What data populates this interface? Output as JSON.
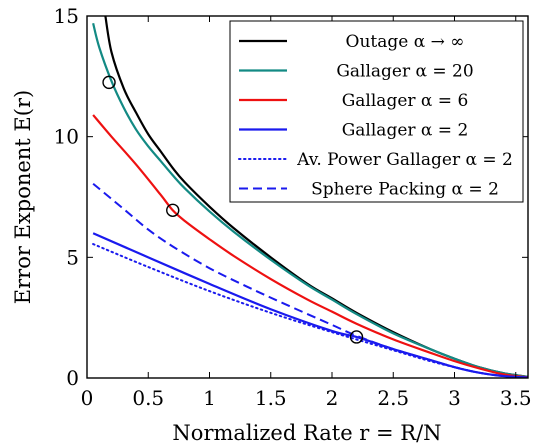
{
  "chart_data": {
    "type": "line",
    "xlabel": "Normalized Rate r = R/N",
    "ylabel": "Error Exponent E(r)",
    "xlim": [
      0,
      3.6
    ],
    "ylim": [
      0,
      15
    ],
    "xticks": [
      0,
      0.5,
      1,
      1.5,
      2,
      2.5,
      3,
      3.5
    ],
    "xtick_labels": [
      "0",
      "0.5",
      "1",
      "1.5",
      "2",
      "2.5",
      "3",
      "3.5"
    ],
    "yticks": [
      0,
      5,
      10,
      15
    ],
    "ytick_labels": [
      "0",
      "5",
      "10",
      "15"
    ],
    "grid": false,
    "legend_position": "top-right",
    "series": [
      {
        "name": "Outage α → ∞",
        "color": "#000000",
        "style": "solid",
        "x": [
          0.15,
          0.2,
          0.3,
          0.4,
          0.5,
          0.6,
          0.7,
          0.8,
          1.0,
          1.2,
          1.5,
          1.8,
          2.0,
          2.2,
          2.5,
          2.8,
          3.0,
          3.2,
          3.4,
          3.6
        ],
        "y": [
          15.0,
          13.5,
          12.0,
          11.0,
          10.1,
          9.4,
          8.7,
          8.1,
          7.1,
          6.2,
          5.0,
          3.9,
          3.3,
          2.7,
          1.9,
          1.2,
          0.8,
          0.45,
          0.2,
          0.05
        ]
      },
      {
        "name": "Gallager α = 20",
        "color": "#138a84",
        "style": "solid",
        "x": [
          0.05,
          0.1,
          0.2,
          0.3,
          0.4,
          0.5,
          0.6,
          0.7,
          0.8,
          1.0,
          1.2,
          1.5,
          1.8,
          2.0,
          2.2,
          2.5,
          2.8,
          3.0,
          3.2,
          3.4,
          3.6
        ],
        "y": [
          14.7,
          13.7,
          12.3,
          11.2,
          10.3,
          9.6,
          9.0,
          8.4,
          7.85,
          6.9,
          6.05,
          4.9,
          3.85,
          3.25,
          2.65,
          1.85,
          1.2,
          0.8,
          0.45,
          0.2,
          0.05
        ]
      },
      {
        "name": "Gallager α = 6",
        "color": "#ee1111",
        "style": "solid",
        "x": [
          0.05,
          0.2,
          0.4,
          0.6,
          0.7,
          0.8,
          1.0,
          1.2,
          1.5,
          1.8,
          2.0,
          2.2,
          2.5,
          2.8,
          3.0,
          3.2,
          3.4,
          3.6
        ],
        "y": [
          10.9,
          10.0,
          8.85,
          7.6,
          6.95,
          6.5,
          5.75,
          5.05,
          4.1,
          3.25,
          2.75,
          2.25,
          1.6,
          1.05,
          0.7,
          0.4,
          0.15,
          0.03
        ]
      },
      {
        "name": "Gallager α = 2",
        "color": "#1a1aee",
        "style": "solid",
        "x": [
          0.05,
          0.5,
          1.0,
          1.5,
          2.0,
          2.2,
          2.5,
          2.8,
          3.0,
          3.2,
          3.4,
          3.6
        ],
        "y": [
          6.0,
          5.0,
          3.9,
          2.85,
          1.95,
          1.7,
          1.2,
          0.75,
          0.45,
          0.22,
          0.08,
          0.02
        ]
      },
      {
        "name": "Av. Power Gallager α = 2",
        "color": "#1a1aee",
        "style": "dotted",
        "x": [
          0.05,
          0.5,
          1.0,
          1.5,
          2.0,
          2.5,
          2.8,
          3.0,
          3.2,
          3.4,
          3.6
        ],
        "y": [
          5.55,
          4.6,
          3.6,
          2.7,
          1.9,
          1.15,
          0.7,
          0.45,
          0.22,
          0.08,
          0.02
        ]
      },
      {
        "name": "Sphere Packing α = 2",
        "color": "#1a1aee",
        "style": "dashed",
        "x": [
          0.05,
          0.3,
          0.5,
          0.7,
          1.0,
          1.3,
          1.6,
          2.0,
          2.2,
          2.5,
          2.8,
          3.0,
          3.2,
          3.4,
          3.6
        ],
        "y": [
          8.05,
          7.0,
          6.15,
          5.45,
          4.55,
          3.8,
          3.1,
          2.2,
          1.75,
          1.2,
          0.75,
          0.45,
          0.22,
          0.08,
          0.02
        ]
      }
    ],
    "markers": [
      {
        "x": 0.18,
        "y": 12.25,
        "shape": "open-circle"
      },
      {
        "x": 0.7,
        "y": 6.95,
        "shape": "open-circle"
      },
      {
        "x": 2.2,
        "y": 1.7,
        "shape": "open-circle"
      }
    ]
  }
}
